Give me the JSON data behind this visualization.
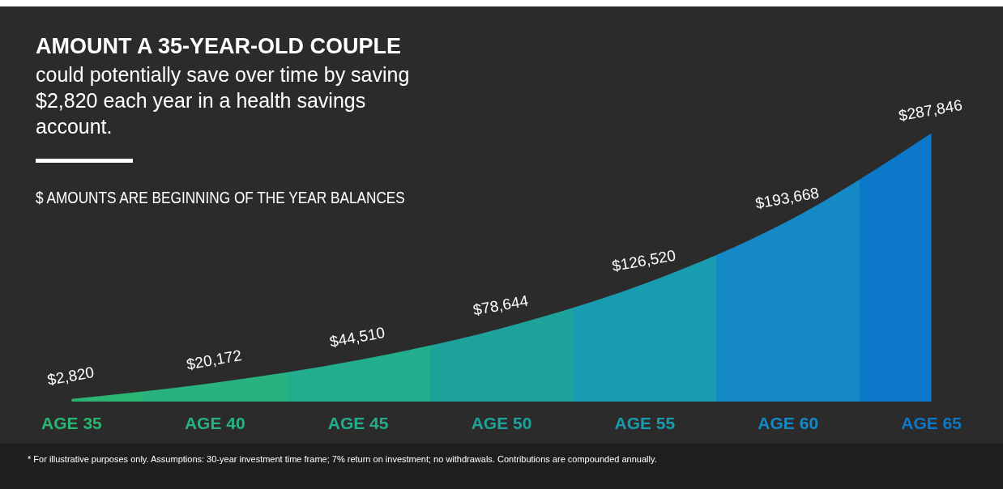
{
  "chart_data": {
    "type": "area",
    "title": "AMOUNT A 35-YEAR-OLD COUPLE",
    "subtitle": "could potentially save over time by saving $2,820 each year in a health savings account.",
    "annotations": [
      "$ AMOUNTS ARE BEGINNING OF THE YEAR BALANCES",
      "* For illustrative purposes only. Assumptions: 30-year investment time frame; 7% return on investment; no withdrawals. Contributions are compounded annually."
    ],
    "categories": [
      "AGE 35",
      "AGE 40",
      "AGE 45",
      "AGE 50",
      "AGE 55",
      "AGE 60",
      "AGE 65"
    ],
    "values": [
      2820,
      20172,
      44510,
      78644,
      126520,
      193668,
      287846
    ],
    "colors": [
      "#2bb574",
      "#27b27f",
      "#22ae8c",
      "#1ea39c",
      "#199bb0",
      "#1489c5",
      "#0b78c9"
    ],
    "value_labels": [
      "$2,820",
      "$20,172",
      "$44,510",
      "$78,644",
      "$126,520",
      "$193,668",
      "$287,846"
    ],
    "grid": false,
    "legend": false
  }
}
